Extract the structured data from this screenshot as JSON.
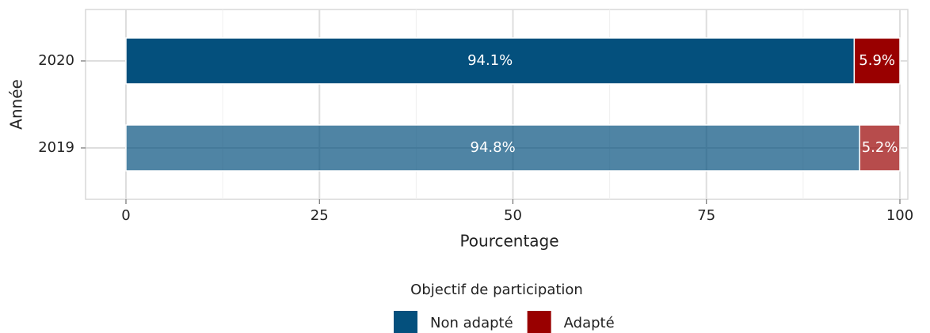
{
  "chart_data": {
    "type": "stacked_barh",
    "xlabel": "Pourcentage",
    "ylabel": "Année",
    "categories": [
      "2020",
      "2019"
    ],
    "opacity": [
      1,
      0.7
    ],
    "series": [
      {
        "name": "Non adapté",
        "color": "#04507d",
        "values": [
          94.1,
          94.8
        ],
        "value_labels": [
          "94.1%",
          "94.8%"
        ]
      },
      {
        "name": "Adapté",
        "color": "#990000",
        "values": [
          5.9,
          5.2
        ],
        "value_labels": [
          "5.9%",
          "5.2%"
        ]
      }
    ],
    "xlim": [
      0,
      100
    ],
    "xticks": [
      0,
      25,
      50,
      75,
      100
    ],
    "grid": true,
    "legend": {
      "title": "Objectif de participation",
      "position": "bottom"
    }
  }
}
